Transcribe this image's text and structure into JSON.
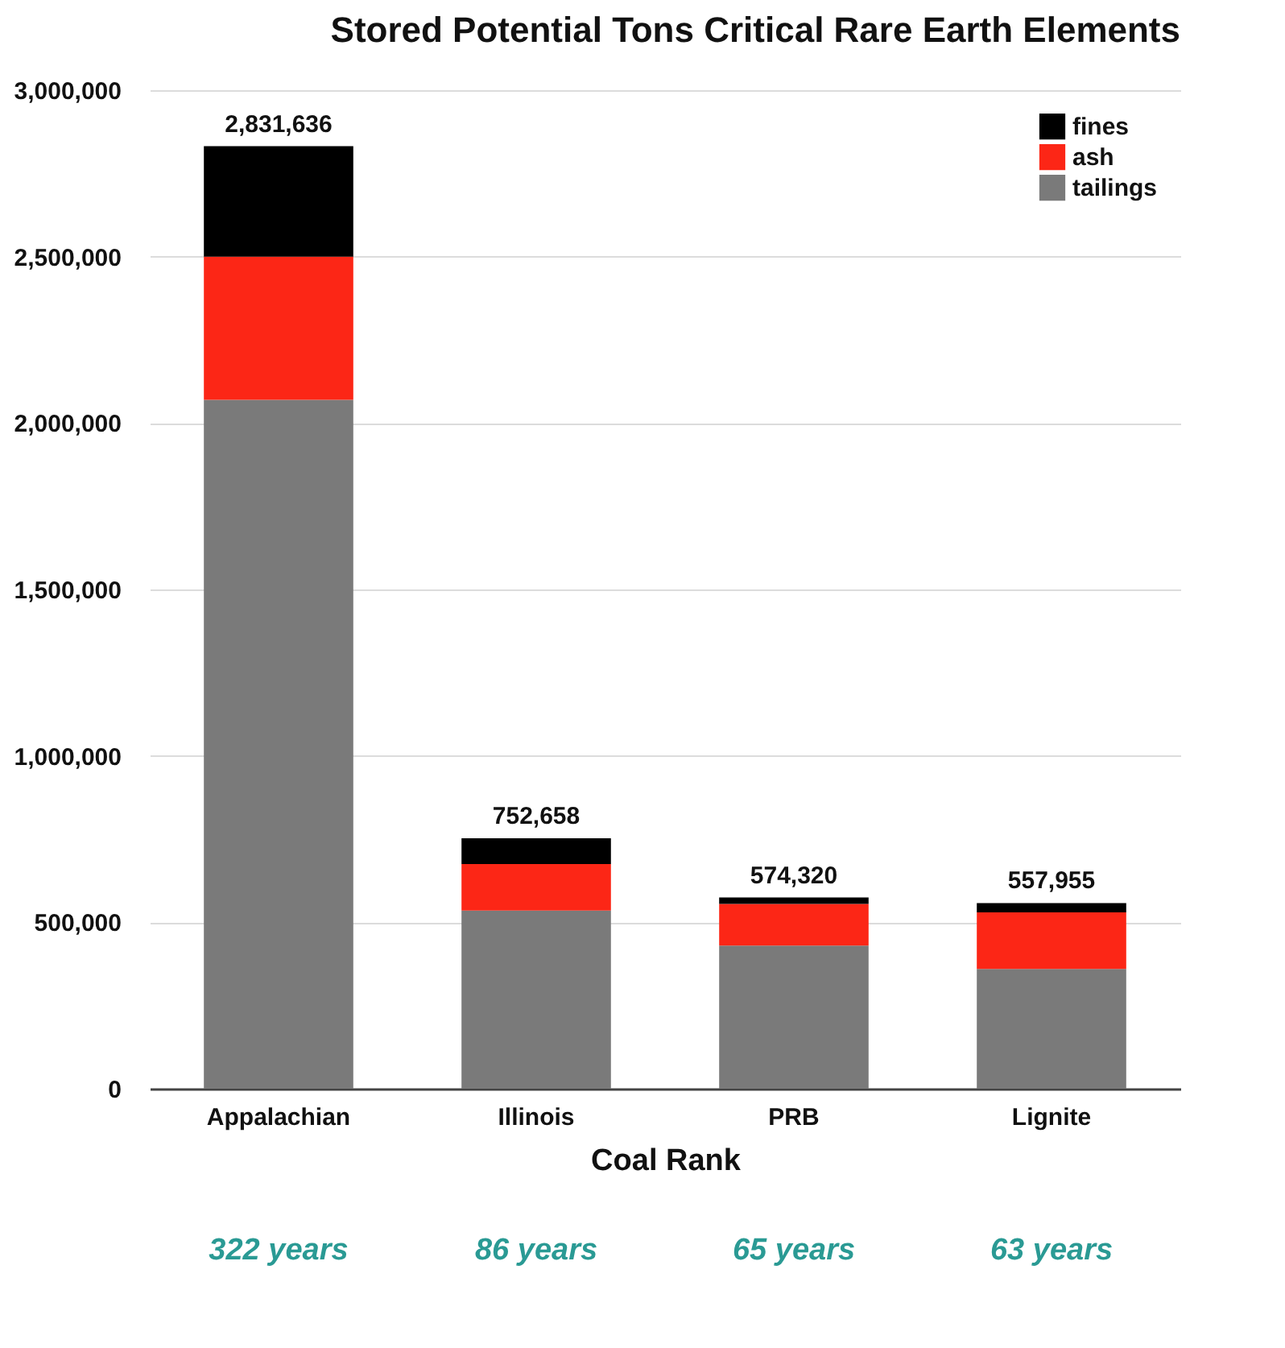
{
  "chart_data": {
    "type": "bar",
    "stacked": true,
    "title": "Stored Potential Tons Critical Rare Earth Elements",
    "xlabel": "Coal Rank",
    "categories": [
      "Appalachian",
      "Illinois",
      "PRB",
      "Lignite"
    ],
    "series": [
      {
        "name": "tailings",
        "color": "#7a7a7a",
        "values": [
          2070000,
          535000,
          430000,
          360000
        ]
      },
      {
        "name": "ash",
        "color": "#fc2616",
        "values": [
          430000,
          140000,
          125000,
          170000
        ]
      },
      {
        "name": "fines",
        "color": "#000000",
        "values": [
          331636,
          77658,
          19320,
          27955
        ]
      }
    ],
    "totals": [
      "2,831,636",
      "752,658",
      "574,320",
      "557,955"
    ],
    "ylim": [
      0,
      3000000
    ],
    "yticks": [
      {
        "value": 0,
        "label": "0"
      },
      {
        "value": 500000,
        "label": "500,000"
      },
      {
        "value": 1000000,
        "label": "1,000,000"
      },
      {
        "value": 1500000,
        "label": "1,500,000"
      },
      {
        "value": 2000000,
        "label": "2,000,000"
      },
      {
        "value": 2500000,
        "label": "2,500,000"
      },
      {
        "value": 3000000,
        "label": "3,000,000"
      }
    ],
    "grid": "y",
    "legend": "top right",
    "annotations": [
      "322 years",
      "86 years",
      "65 years",
      "63 years"
    ]
  }
}
